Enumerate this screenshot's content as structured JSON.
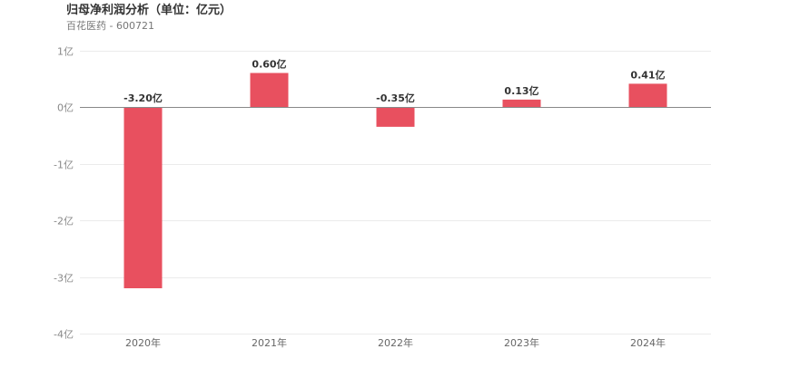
{
  "header": {
    "title": "归母净利润分析（单位：亿元）",
    "subtitle": "百花医药 - 600721"
  },
  "chart_data": {
    "type": "bar",
    "categories": [
      "2020年",
      "2021年",
      "2022年",
      "2023年",
      "2024年"
    ],
    "series": [
      {
        "values": [
          -3.2,
          0.6,
          -0.35,
          0.13,
          0.41
        ]
      }
    ],
    "data_labels": [
      "-3.20亿",
      "0.60亿",
      "-0.35亿",
      "0.13亿",
      "0.41亿"
    ],
    "y_ticks": [
      1,
      0,
      -1,
      -2,
      -3,
      -4
    ],
    "y_tick_labels": [
      "1亿",
      "0亿",
      "-1亿",
      "-2亿",
      "-3亿",
      "-4亿"
    ],
    "ylim": [
      -4,
      1
    ],
    "grid": true,
    "bar_color": "#e8505f"
  }
}
